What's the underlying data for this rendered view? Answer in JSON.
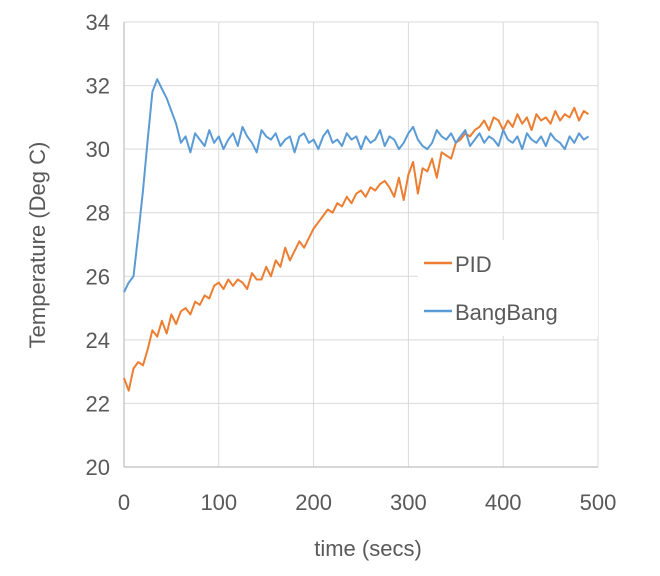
{
  "chart_data": {
    "type": "line",
    "title": "",
    "xlabel": "time (secs)",
    "ylabel": "Temperature (Deg C)",
    "xlim": [
      0,
      500
    ],
    "ylim": [
      20,
      34
    ],
    "xticks": [
      0,
      100,
      200,
      300,
      400,
      500
    ],
    "yticks": [
      20,
      22,
      24,
      26,
      28,
      30,
      32,
      34
    ],
    "grid": true,
    "legend_position": "right-middle",
    "x_step": 5,
    "series": [
      {
        "name": "PID",
        "color": "#ED7D31",
        "values": [
          22.8,
          22.4,
          23.1,
          23.3,
          23.2,
          23.7,
          24.3,
          24.1,
          24.6,
          24.2,
          24.8,
          24.5,
          24.9,
          25.0,
          24.8,
          25.2,
          25.1,
          25.4,
          25.3,
          25.7,
          25.8,
          25.6,
          25.9,
          25.7,
          25.9,
          25.8,
          25.6,
          26.1,
          25.9,
          25.9,
          26.3,
          26.0,
          26.5,
          26.3,
          26.9,
          26.5,
          26.8,
          27.1,
          26.9,
          27.2,
          27.5,
          27.7,
          27.9,
          28.1,
          28.0,
          28.3,
          28.2,
          28.5,
          28.3,
          28.6,
          28.7,
          28.5,
          28.8,
          28.7,
          28.9,
          29.0,
          28.8,
          28.5,
          29.1,
          28.4,
          29.2,
          29.6,
          28.6,
          29.4,
          29.3,
          29.7,
          29.1,
          29.9,
          29.8,
          29.7,
          30.2,
          30.3,
          30.5,
          30.4,
          30.6,
          30.7,
          30.9,
          30.6,
          31.0,
          30.9,
          30.6,
          30.9,
          30.7,
          31.1,
          30.8,
          31.0,
          30.6,
          31.1,
          30.9,
          31.0,
          30.8,
          31.2,
          30.9,
          31.1,
          31.0,
          31.3,
          30.9,
          31.2,
          31.1
        ]
      },
      {
        "name": "BangBang",
        "color": "#5B9BD5",
        "values": [
          25.5,
          25.8,
          26.0,
          27.3,
          28.7,
          30.3,
          31.8,
          32.2,
          31.9,
          31.6,
          31.2,
          30.8,
          30.2,
          30.4,
          29.9,
          30.5,
          30.3,
          30.1,
          30.6,
          30.2,
          30.4,
          30.0,
          30.3,
          30.5,
          30.1,
          30.7,
          30.4,
          30.2,
          29.9,
          30.6,
          30.4,
          30.3,
          30.5,
          30.1,
          30.3,
          30.4,
          29.9,
          30.4,
          30.5,
          30.2,
          30.3,
          30.0,
          30.4,
          30.6,
          30.2,
          30.3,
          30.1,
          30.5,
          30.3,
          30.4,
          30.0,
          30.4,
          30.2,
          30.3,
          30.6,
          30.1,
          30.4,
          30.3,
          30.0,
          30.2,
          30.5,
          30.7,
          30.3,
          30.1,
          30.0,
          30.2,
          30.6,
          30.4,
          30.3,
          30.5,
          30.2,
          30.4,
          30.6,
          30.1,
          30.3,
          30.5,
          30.2,
          30.4,
          30.3,
          30.1,
          30.6,
          30.3,
          30.2,
          30.4,
          30.0,
          30.5,
          30.3,
          30.2,
          30.4,
          30.1,
          30.5,
          30.3,
          30.2,
          30.0,
          30.4,
          30.2,
          30.5,
          30.3,
          30.4
        ]
      }
    ]
  }
}
